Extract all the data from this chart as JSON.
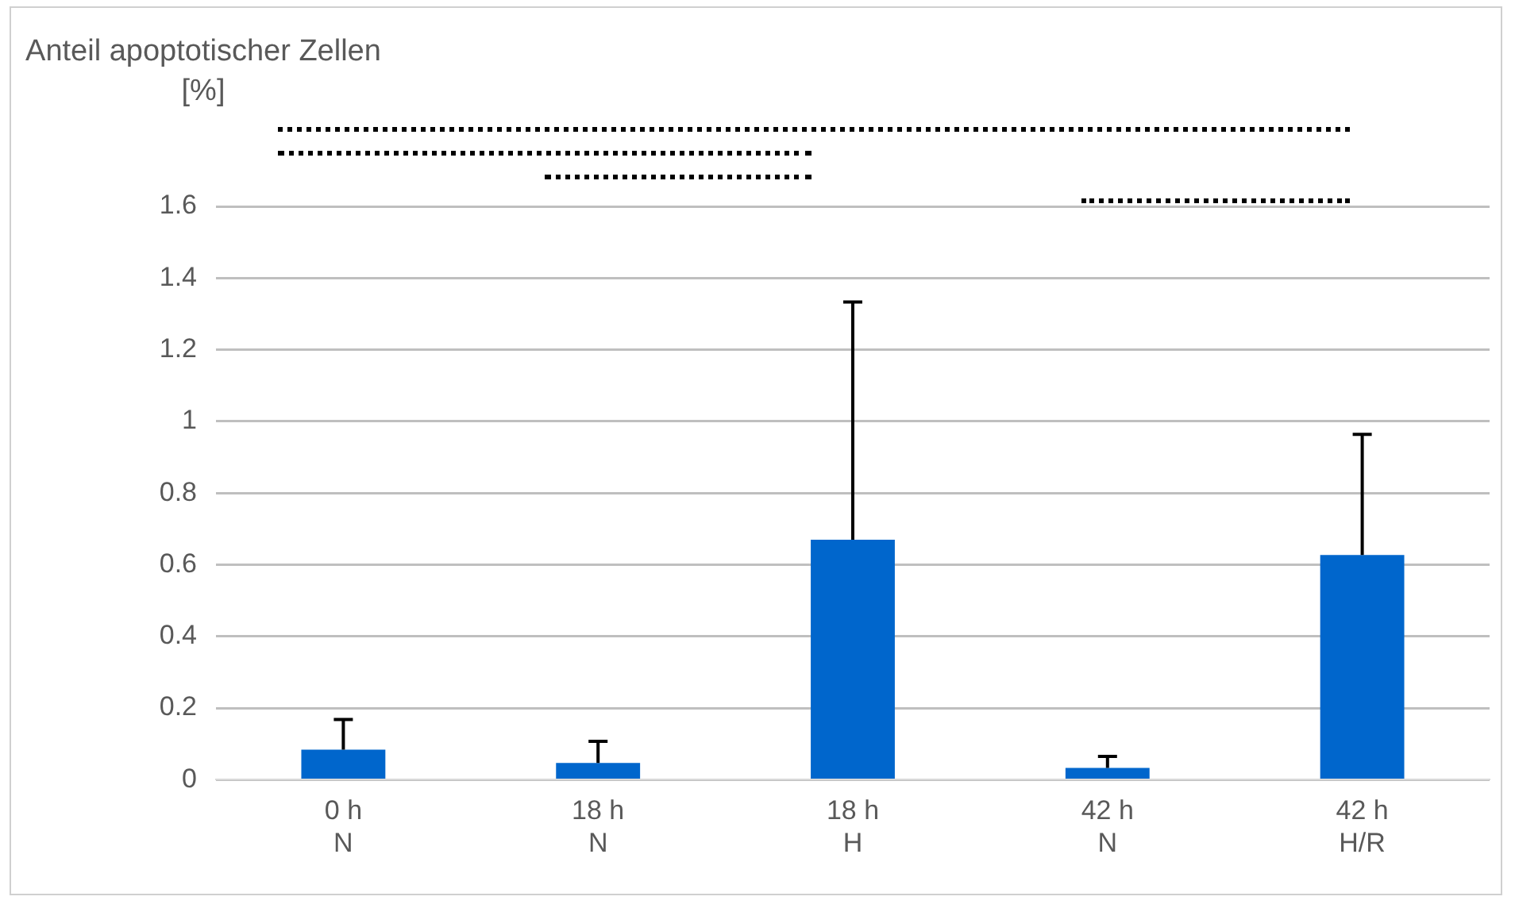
{
  "chart_data": {
    "type": "bar",
    "ylabel": "Anteil apoptotischer Zellen [%]",
    "categories": [
      "0 h\nN",
      "18 h\nN",
      "18 h\nH",
      "42 h\nN",
      "42 h\nH/R"
    ],
    "values": [
      0.084,
      0.047,
      0.67,
      0.033,
      0.627
    ],
    "errors": [
      [
        0.084,
        0.168
      ],
      [
        0.047,
        0.107
      ],
      [
        0.67,
        1.333
      ],
      [
        0.033,
        0.065
      ],
      [
        0.627,
        0.964
      ]
    ],
    "color": "#0066cc",
    "ylim": [
      0,
      1.6
    ],
    "yticks": [
      0,
      0.2,
      0.4,
      0.6,
      0.8,
      1,
      1.2,
      1.4,
      1.6
    ],
    "grid": "y",
    "legend": false
  }
}
